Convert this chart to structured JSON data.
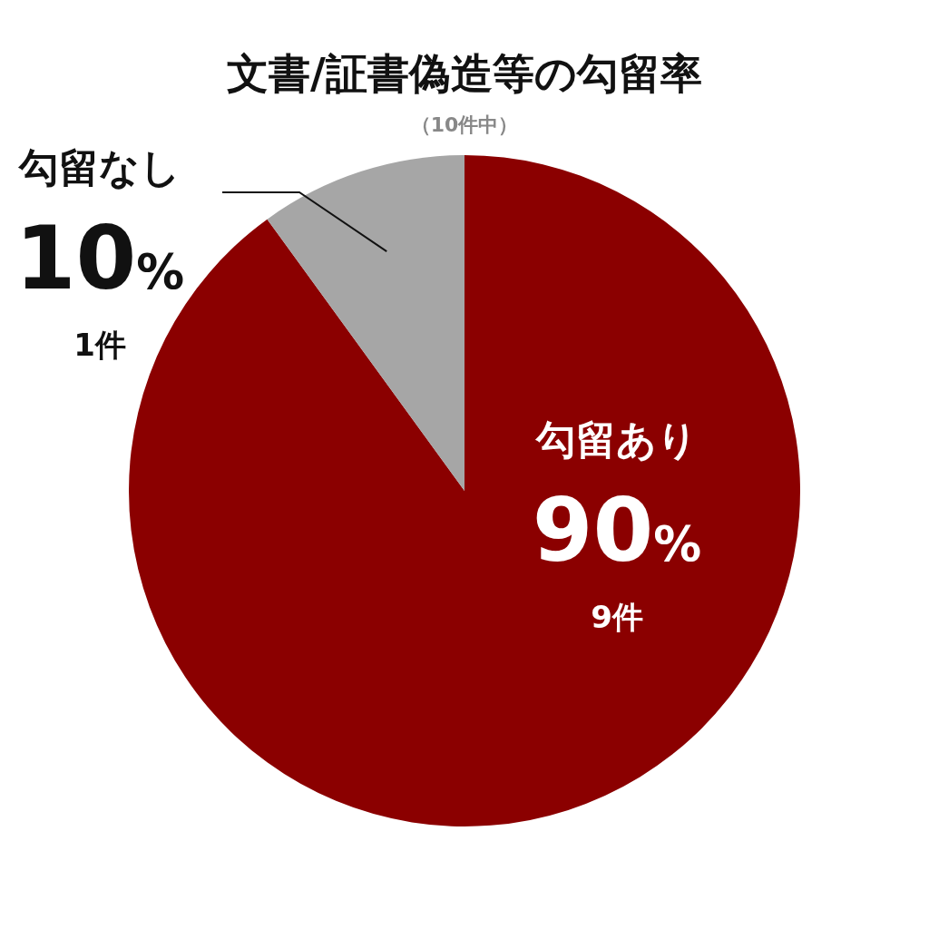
{
  "chart_data": {
    "type": "pie",
    "title": "文書/証書偽造等の勾留率",
    "subtitle": "（10件中）",
    "categories": [
      "勾留あり",
      "勾留なし"
    ],
    "values": [
      90,
      10
    ],
    "colors": [
      "#8b0000",
      "#a6a6a6"
    ],
    "value_labels": [
      "90%",
      "10%"
    ],
    "annotations": [
      "9件",
      "1件"
    ]
  }
}
